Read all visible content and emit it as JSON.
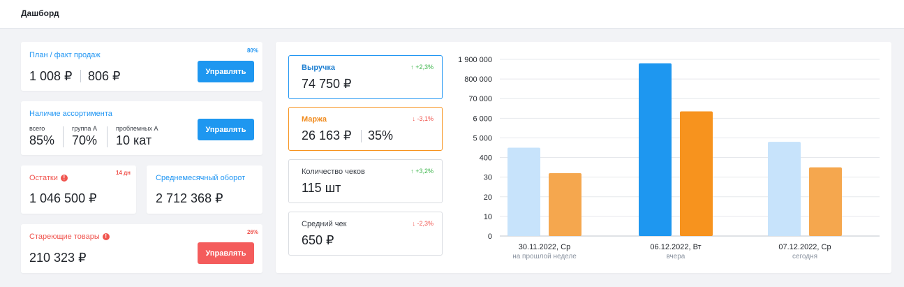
{
  "header": {
    "title": "Дашборд"
  },
  "plan_card": {
    "title": "План / факт продаж",
    "percent": "80%",
    "plan_value": "1 008 ₽",
    "fact_value": "806 ₽",
    "button": "Управлять"
  },
  "assortment_card": {
    "title": "Наличие ассортимента",
    "stats": [
      {
        "label": "всего",
        "value": "85%"
      },
      {
        "label": "группа А",
        "value": "70%"
      },
      {
        "label": "проблемных А",
        "value": "10 кат"
      }
    ],
    "button": "Управлять"
  },
  "stock_card": {
    "title": "Остатки",
    "badge": "14 дн",
    "value": "1 046 500 ₽",
    "info_icon": "!"
  },
  "turnover_card": {
    "title": "Среднемесячный оборот",
    "value": "2 712 368 ₽"
  },
  "aging_card": {
    "title": "Стареющие товары",
    "percent": "26%",
    "value": "210 323 ₽",
    "button": "Управлять",
    "info_icon": "!"
  },
  "metrics": [
    {
      "label": "Выручка",
      "value": "74 750 ₽",
      "delta": "↑ +2,3%"
    },
    {
      "label": "Маржа",
      "value": "26 163 ₽",
      "value2": "35%",
      "delta": "↓ -3,1%"
    },
    {
      "label": "Количество чеков",
      "value": "115 шт",
      "delta": "↑ +3,2%"
    },
    {
      "label": "Средний чек",
      "value": "650 ₽",
      "delta": "↓ -2,3%"
    }
  ],
  "colors": {
    "blue": "#1e97f0",
    "light_blue": "#c7e3fb",
    "orange": "#f7931e",
    "light_orange": "#f5a74e",
    "red": "#f0554f",
    "green": "#3bb54a"
  },
  "chart_data": {
    "type": "bar",
    "ytick_labels": [
      "0",
      "10",
      "20",
      "30",
      "400",
      "5 000",
      "6 000",
      "70 000",
      "800 000",
      "1 900 000"
    ],
    "categories": [
      "30.11.2022, Ср",
      "06.12.2022, Вт",
      "07.12.2022, Ср"
    ],
    "category_sublabels": [
      "на прошлой неделе",
      "вчера",
      "сегодня"
    ],
    "series": [
      {
        "values": [
          4.5,
          8.8,
          4.8
        ]
      },
      {
        "values": [
          3.2,
          6.35,
          3.5
        ]
      }
    ],
    "ylim": [
      0,
      9
    ],
    "grid": true
  }
}
